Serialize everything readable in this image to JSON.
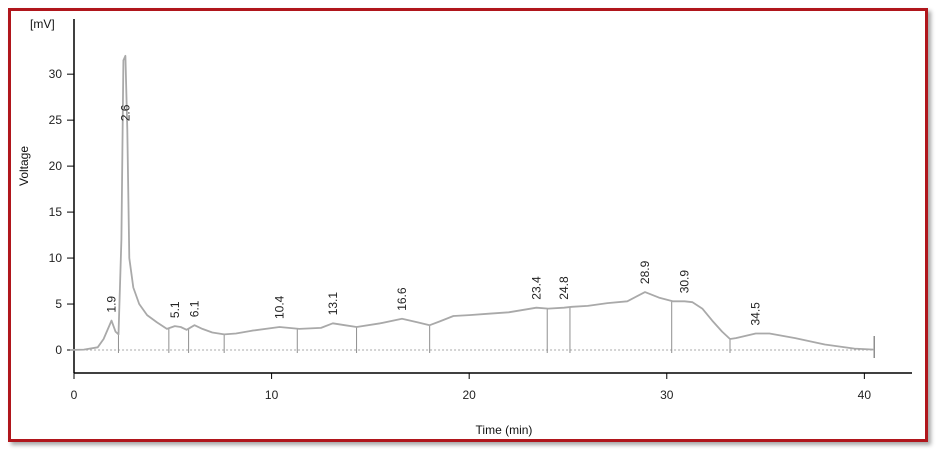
{
  "chart_data": {
    "type": "line",
    "title": "",
    "xlabel": "Time (min)",
    "ylabel": "Voltage",
    "yunit": "[mV]",
    "xlim": [
      0,
      41.5
    ],
    "ylim": [
      -2.5,
      36
    ],
    "xticks": [
      0,
      10,
      20,
      30,
      40
    ],
    "yticks": [
      0,
      5,
      10,
      15,
      20,
      25,
      30
    ],
    "grid": false,
    "line_color": "#a9a9a9",
    "baseline_color": "#a9a9a9",
    "series": [
      {
        "x": [
          -0.2,
          0.5,
          1.2,
          1.5,
          1.9,
          2.1,
          2.25,
          2.4,
          2.5,
          2.6,
          2.7,
          2.8,
          3.0,
          3.3,
          3.7,
          4.2,
          4.7,
          5.1,
          5.4,
          5.7,
          6.1,
          6.5,
          7.0,
          7.6,
          8.2,
          9.0,
          10.4,
          11.4,
          12.5,
          13.1,
          13.7,
          14.3,
          15.5,
          16.6,
          17.4,
          18.0,
          18.5,
          19.2,
          20.0,
          21.0,
          22.0,
          23.4,
          24.0,
          24.8,
          25.2,
          26.0,
          27.0,
          28.0,
          28.9,
          29.6,
          30.3,
          30.9,
          31.3,
          31.8,
          32.3,
          32.8,
          33.2,
          33.5,
          34.5,
          35.2,
          36.5,
          38.0,
          39.5,
          40.5
        ],
        "y": [
          0,
          0.05,
          0.3,
          1.2,
          3.2,
          2.0,
          1.7,
          12.0,
          31.5,
          32.0,
          24.0,
          10.0,
          6.8,
          5.0,
          3.8,
          3.0,
          2.3,
          2.6,
          2.5,
          2.2,
          2.7,
          2.3,
          1.9,
          1.7,
          1.8,
          2.1,
          2.5,
          2.3,
          2.4,
          2.9,
          2.7,
          2.5,
          2.9,
          3.4,
          3.0,
          2.7,
          3.1,
          3.7,
          3.8,
          3.95,
          4.1,
          4.6,
          4.5,
          4.6,
          4.7,
          4.8,
          5.1,
          5.3,
          6.3,
          5.7,
          5.3,
          5.3,
          5.2,
          4.5,
          3.2,
          2.0,
          1.2,
          1.3,
          1.8,
          1.8,
          1.3,
          0.6,
          0.15,
          0.05
        ]
      }
    ],
    "annotations": [
      {
        "label": "1.9",
        "x": 1.9,
        "y": 3.2
      },
      {
        "label": "2.6",
        "x": 2.6,
        "y": 24.0
      },
      {
        "label": "5.1",
        "x": 5.1,
        "y": 2.6
      },
      {
        "label": "6.1",
        "x": 6.1,
        "y": 2.7
      },
      {
        "label": "10.4",
        "x": 10.4,
        "y": 2.5
      },
      {
        "label": "13.1",
        "x": 13.1,
        "y": 2.9
      },
      {
        "label": "16.6",
        "x": 16.6,
        "y": 3.4
      },
      {
        "label": "23.4",
        "x": 23.4,
        "y": 4.6
      },
      {
        "label": "24.8",
        "x": 24.8,
        "y": 4.6
      },
      {
        "label": "28.9",
        "x": 28.9,
        "y": 6.3
      },
      {
        "label": "30.9",
        "x": 30.9,
        "y": 5.3
      },
      {
        "label": "34.5",
        "x": 34.5,
        "y": 1.8
      }
    ],
    "integration_markers": [
      2.25,
      4.8,
      5.8,
      7.6,
      11.3,
      14.3,
      18.0,
      23.95,
      25.1,
      30.25,
      33.2
    ]
  }
}
